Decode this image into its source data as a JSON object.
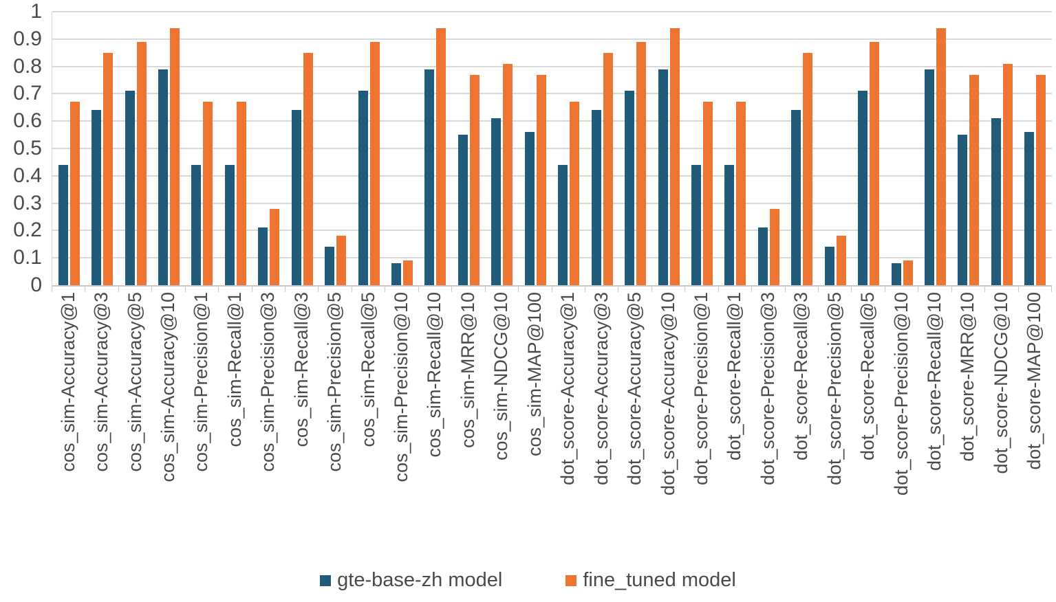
{
  "chart_data": {
    "type": "bar",
    "title": "",
    "categories": [
      "cos_sim-Accuracy@1",
      "cos_sim-Accuracy@3",
      "cos_sim-Accuracy@5",
      "cos_sim-Accuracy@10",
      "cos_sim-Precision@1",
      "cos_sim-Recall@1",
      "cos_sim-Precision@3",
      "cos_sim-Recall@3",
      "cos_sim-Precision@5",
      "cos_sim-Recall@5",
      "cos_sim-Precision@10",
      "cos_sim-Recall@10",
      "cos_sim-MRR@10",
      "cos_sim-NDCG@10",
      "cos_sim-MAP@100",
      "dot_score-Accuracy@1",
      "dot_score-Accuracy@3",
      "dot_score-Accuracy@5",
      "dot_score-Accuracy@10",
      "dot_score-Precision@1",
      "dot_score-Recall@1",
      "dot_score-Precision@3",
      "dot_score-Recall@3",
      "dot_score-Precision@5",
      "dot_score-Recall@5",
      "dot_score-Precision@10",
      "dot_score-Recall@10",
      "dot_score-MRR@10",
      "dot_score-NDCG@10",
      "dot_score-MAP@100"
    ],
    "series": [
      {
        "name": "gte-base-zh model",
        "color": "#205c7a",
        "values": [
          0.44,
          0.64,
          0.71,
          0.79,
          0.44,
          0.44,
          0.21,
          0.64,
          0.14,
          0.71,
          0.08,
          0.79,
          0.55,
          0.61,
          0.56,
          0.44,
          0.64,
          0.71,
          0.79,
          0.44,
          0.44,
          0.21,
          0.64,
          0.14,
          0.71,
          0.08,
          0.79,
          0.55,
          0.61,
          0.56
        ]
      },
      {
        "name": "fine_tuned model",
        "color": "#ed7531",
        "values": [
          0.67,
          0.85,
          0.89,
          0.94,
          0.67,
          0.67,
          0.28,
          0.85,
          0.18,
          0.89,
          0.09,
          0.94,
          0.77,
          0.81,
          0.77,
          0.67,
          0.85,
          0.89,
          0.94,
          0.67,
          0.67,
          0.28,
          0.85,
          0.18,
          0.89,
          0.09,
          0.94,
          0.77,
          0.81,
          0.77
        ]
      }
    ],
    "xlabel": "",
    "ylabel": "",
    "ylim": [
      0,
      1
    ],
    "ytick_labels": [
      "0",
      "0.1",
      "0.2",
      "0.3",
      "0.4",
      "0.5",
      "0.6",
      "0.7",
      "0.8",
      "0.9",
      "1"
    ],
    "grid": true,
    "gridline_color": "#d9d9d9",
    "legend_position": "bottom"
  }
}
